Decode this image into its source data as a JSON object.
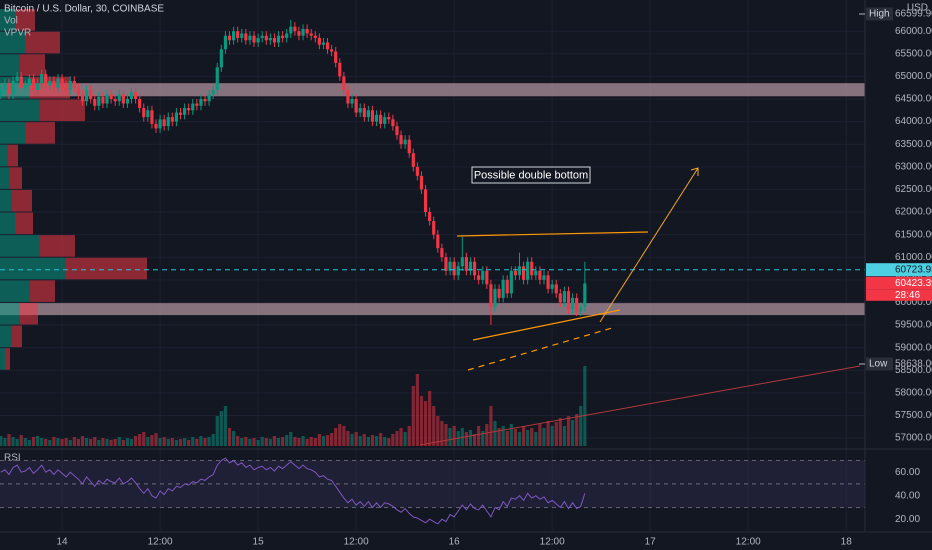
{
  "chart_data": {
    "type": "candlestick",
    "title": "Bitcoin / U.S. Dollar, 30, COINBASE",
    "indicators": [
      "Vol",
      "VPVR"
    ],
    "currency": "USD",
    "annotation": "Possible double bottom",
    "up_color": "#089981",
    "down_color": "#f23645",
    "grid": true,
    "x": [
      -7.5,
      -7,
      -6.5,
      -6,
      -5.5,
      -5,
      -4.5,
      -4,
      -3.5,
      -3,
      -2.5,
      -2,
      -1.5,
      -1,
      -0.5,
      0,
      0.5,
      1,
      1.5,
      2,
      2.5,
      3,
      3.5,
      4,
      4.5,
      5,
      5.5,
      6,
      6.5,
      7,
      7.5,
      8,
      8.5,
      9,
      9.5,
      10,
      10.5,
      11,
      11.5,
      12,
      12.5,
      13,
      13.5,
      14,
      14.5,
      15,
      15.5,
      16,
      16.5,
      17,
      17.5,
      18,
      18.5,
      19,
      19.5,
      20,
      20.5,
      21,
      21.5,
      22,
      22.5,
      23,
      23.5,
      24,
      24.5,
      25,
      25.5,
      26,
      26.5,
      27,
      27.5,
      28,
      28.5,
      29,
      29.5,
      30,
      30.5,
      31,
      31.5,
      32,
      32.5,
      33,
      33.5,
      34,
      34.5,
      35,
      35.5,
      36,
      36.5,
      37,
      37.5,
      38,
      38.5,
      39,
      39.5,
      40,
      40.5,
      41,
      41.5,
      42,
      42.5,
      43,
      43.5,
      44,
      44.5,
      45,
      45.5,
      46,
      46.5,
      47,
      47.5,
      48,
      48.5,
      49,
      49.5,
      50,
      50.5,
      51,
      51.5,
      52,
      52.5,
      53,
      53.5,
      54,
      54.5,
      55,
      55.5,
      56,
      56.5,
      57,
      57.5,
      58,
      58.5,
      59,
      59.5,
      60,
      60.5,
      61,
      61.5,
      62,
      62.5,
      63,
      63.5,
      64
    ],
    "open": [
      64600,
      64700,
      64850,
      64600,
      64900,
      65000,
      64750,
      64800,
      64950,
      64700,
      64850,
      65050,
      64800,
      64900,
      64750,
      64950,
      64800,
      64700,
      64900,
      64750,
      64600,
      64450,
      64700,
      64500,
      64350,
      64550,
      64400,
      64600,
      64500,
      64450,
      64600,
      64400,
      64500,
      64650,
      64500,
      64300,
      64100,
      64250,
      63950,
      63850,
      64050,
      63900,
      64100,
      64000,
      64200,
      64150,
      64300,
      64250,
      64400,
      64350,
      64500,
      64450,
      64600,
      64700,
      65200,
      65600,
      65900,
      65800,
      66000,
      65850,
      65950,
      65800,
      65900,
      65750,
      65850,
      65900,
      65800,
      65850,
      65750,
      65900,
      65850,
      65950,
      66100,
      66000,
      65900,
      66050,
      65950,
      65900,
      65850,
      65700,
      65750,
      65600,
      65550,
      65300,
      65000,
      64700,
      64400,
      64500,
      64200,
      64300,
      64100,
      64250,
      64000,
      64150,
      63950,
      64100,
      64050,
      63900,
      63700,
      63500,
      63600,
      63300,
      63000,
      62800,
      62500,
      62000,
      61800,
      61500,
      61200,
      61000,
      60700,
      60900,
      60600,
      60800,
      61000,
      60700,
      60900,
      60600,
      60500,
      60700,
      60400,
      59900,
      60300,
      60100,
      60500,
      60200,
      60700,
      60600,
      60800,
      60500,
      60900,
      60600,
      60700,
      60500,
      60600,
      60300,
      60400,
      60200,
      60000,
      60250,
      59850,
      60100,
      59800,
      59900
    ],
    "high": [
      64800,
      64950,
      64950,
      65000,
      65100,
      65100,
      64900,
      65050,
      65050,
      64950,
      65150,
      65150,
      65000,
      65000,
      65050,
      65050,
      64900,
      65000,
      65000,
      64850,
      64700,
      64800,
      64800,
      64600,
      64650,
      64650,
      64700,
      64700,
      64600,
      64700,
      64700,
      64600,
      64750,
      64750,
      64600,
      64400,
      64350,
      64350,
      64050,
      64150,
      64150,
      64200,
      64200,
      64300,
      64300,
      64400,
      64400,
      64500,
      64500,
      64600,
      64600,
      64700,
      64800,
      65300,
      65700,
      66000,
      66000,
      66100,
      66100,
      66050,
      66050,
      66000,
      66000,
      65950,
      66000,
      66000,
      65950,
      65950,
      66000,
      66000,
      66050,
      66250,
      66200,
      66100,
      66150,
      66150,
      66050,
      66000,
      65950,
      65850,
      65850,
      65700,
      65650,
      65400,
      65100,
      64800,
      64600,
      64600,
      64400,
      64400,
      64350,
      64350,
      64250,
      64250,
      64200,
      64200,
      64150,
      64000,
      63800,
      63700,
      63700,
      63400,
      63100,
      62900,
      62600,
      62100,
      61900,
      61600,
      61300,
      61100,
      61000,
      61000,
      60900,
      61450,
      61100,
      61000,
      61000,
      60700,
      60800,
      60800,
      60500,
      60400,
      60400,
      60600,
      60600,
      60800,
      60800,
      61100,
      60900,
      61000,
      61000,
      60800,
      60800,
      60700,
      60700,
      60500,
      60500,
      60300,
      60350,
      60350,
      60200,
      60200,
      60000,
      60900
    ],
    "low": [
      64500,
      64600,
      64500,
      64500,
      64800,
      64650,
      64650,
      64700,
      64600,
      64600,
      64750,
      64700,
      64700,
      64650,
      64650,
      64700,
      64600,
      64600,
      64650,
      64500,
      64350,
      64350,
      64400,
      64250,
      64250,
      64300,
      64300,
      64400,
      64350,
      64350,
      64300,
      64300,
      64400,
      64400,
      64200,
      64000,
      64000,
      63850,
      63750,
      63750,
      63800,
      63800,
      63900,
      63900,
      64050,
      64050,
      64150,
      64150,
      64250,
      64250,
      64350,
      64350,
      64500,
      64600,
      65100,
      65500,
      65700,
      65700,
      65750,
      65750,
      65700,
      65700,
      65650,
      65650,
      65750,
      65700,
      65700,
      65650,
      65650,
      65750,
      65750,
      65850,
      65900,
      65800,
      65800,
      65850,
      65800,
      65750,
      65600,
      65600,
      65500,
      65450,
      65200,
      64900,
      64600,
      64300,
      64300,
      64100,
      64100,
      64000,
      64000,
      63900,
      63900,
      63850,
      63850,
      63950,
      63800,
      63600,
      63400,
      63400,
      63200,
      62900,
      62700,
      62400,
      61900,
      61700,
      61400,
      61100,
      60900,
      60600,
      60600,
      60500,
      60500,
      60700,
      60600,
      60600,
      60500,
      60400,
      60400,
      60300,
      59500,
      59800,
      60000,
      60000,
      60100,
      60100,
      60500,
      60500,
      60400,
      60400,
      60500,
      60500,
      60400,
      60400,
      60200,
      60200,
      60100,
      59900,
      59900,
      59750,
      59750,
      59700,
      59700,
      59800
    ],
    "close": [
      64700,
      64850,
      64600,
      64900,
      65000,
      64750,
      64800,
      64950,
      64700,
      64850,
      65050,
      64800,
      64900,
      64750,
      64950,
      64800,
      64700,
      64900,
      64750,
      64600,
      64450,
      64700,
      64500,
      64350,
      64550,
      64400,
      64600,
      64500,
      64450,
      64600,
      64400,
      64500,
      64650,
      64500,
      64300,
      64100,
      64250,
      63950,
      63850,
      64050,
      63900,
      64100,
      64000,
      64200,
      64150,
      64300,
      64250,
      64400,
      64350,
      64500,
      64450,
      64600,
      64700,
      65200,
      65600,
      65900,
      65800,
      66000,
      65850,
      65950,
      65800,
      65900,
      65750,
      65850,
      65900,
      65800,
      65850,
      65750,
      65900,
      65850,
      65950,
      66100,
      66000,
      65900,
      66050,
      65950,
      65900,
      65850,
      65700,
      65750,
      65600,
      65550,
      65300,
      65000,
      64700,
      64400,
      64500,
      64200,
      64300,
      64100,
      64250,
      64000,
      64150,
      63950,
      64100,
      64050,
      63900,
      63700,
      63500,
      63600,
      63300,
      63000,
      62800,
      62500,
      62000,
      61800,
      61500,
      61200,
      61000,
      60700,
      60900,
      60600,
      60800,
      61000,
      60700,
      60900,
      60600,
      60500,
      60700,
      60400,
      59900,
      60300,
      60100,
      60500,
      60200,
      60700,
      60600,
      60800,
      60500,
      60900,
      60600,
      60700,
      60500,
      60600,
      60300,
      60400,
      60200,
      60000,
      60250,
      59850,
      60100,
      59800,
      59900,
      60420
    ],
    "volume": [
      10,
      8,
      12,
      9,
      7,
      11,
      8,
      6,
      9,
      10,
      8,
      7,
      6,
      9,
      8,
      7,
      8,
      6,
      9,
      7,
      10,
      8,
      7,
      9,
      6,
      8,
      7,
      6,
      7,
      9,
      6,
      8,
      7,
      10,
      12,
      14,
      9,
      11,
      13,
      8,
      9,
      7,
      8,
      6,
      7,
      8,
      6,
      9,
      7,
      10,
      8,
      9,
      12,
      30,
      35,
      40,
      18,
      15,
      10,
      8,
      9,
      7,
      8,
      6,
      9,
      8,
      7,
      10,
      8,
      9,
      11,
      14,
      9,
      8,
      10,
      7,
      9,
      8,
      12,
      10,
      11,
      13,
      18,
      22,
      20,
      15,
      12,
      14,
      10,
      12,
      9,
      11,
      10,
      13,
      9,
      8,
      12,
      15,
      18,
      14,
      20,
      60,
      72,
      50,
      45,
      55,
      40,
      30,
      25,
      22,
      18,
      20,
      15,
      18,
      14,
      16,
      12,
      20,
      15,
      22,
      40,
      25,
      18,
      20,
      15,
      22,
      17,
      14,
      20,
      16,
      18,
      14,
      22,
      18,
      25,
      20,
      24,
      28,
      20,
      30,
      26,
      32,
      40,
      80
    ],
    "xlim": [
      -7.6,
      98.3
    ],
    "xticks": [
      {
        "value": 0,
        "label": "14"
      },
      {
        "value": 12,
        "label": "12:00"
      },
      {
        "value": 24,
        "label": "15"
      },
      {
        "value": 36,
        "label": "12:00"
      },
      {
        "value": 48,
        "label": "16"
      },
      {
        "value": 60,
        "label": "12:00"
      },
      {
        "value": 72,
        "label": "17"
      },
      {
        "value": 84,
        "label": "12:00"
      },
      {
        "value": 96,
        "label": "18"
      }
    ],
    "ylim": [
      56780,
      66690
    ],
    "yticks": [
      {
        "value": 57000,
        "label": "57000.00"
      },
      {
        "value": 57500,
        "label": "57500.00"
      },
      {
        "value": 58000,
        "label": "58000.00"
      },
      {
        "value": 58500,
        "label": "58500.00"
      },
      {
        "value": 59000,
        "label": "59000.00"
      },
      {
        "value": 59500,
        "label": "59500.00"
      },
      {
        "value": 60000,
        "label": "60000.00"
      },
      {
        "value": 60500,
        "label": "60500.00"
      },
      {
        "value": 61000,
        "label": "61000.00"
      },
      {
        "value": 61500,
        "label": "61500.00"
      },
      {
        "value": 62000,
        "label": "62000.00"
      },
      {
        "value": 62500,
        "label": "62500.00"
      },
      {
        "value": 63000,
        "label": "63000.00"
      },
      {
        "value": 63500,
        "label": "63500.00"
      },
      {
        "value": 64000,
        "label": "64000.00"
      },
      {
        "value": 64500,
        "label": "64500.00"
      },
      {
        "value": 65000,
        "label": "65000.00"
      },
      {
        "value": 65500,
        "label": "65500.00"
      },
      {
        "value": 66000,
        "label": "66000.00"
      }
    ],
    "zones": [
      [
        59720,
        59985
      ],
      [
        64560,
        64850
      ]
    ],
    "alert_line": 60723.93,
    "last_price": 60423.39,
    "countdown": "28:46",
    "high_marker": {
      "name": "High",
      "value": 66599.9,
      "label": "66599.90"
    },
    "low_marker": {
      "name": "Low",
      "value": 58638,
      "label": "58638.00"
    },
    "vpvr": {
      "bins": [
        58500,
        59000,
        59500,
        60000,
        60500,
        61000,
        61500,
        62000,
        62500,
        63000,
        63500,
        64000,
        64500,
        65000,
        65500,
        66000,
        66500
      ],
      "up": [
        5,
        12,
        20,
        30,
        65,
        40,
        15,
        12,
        10,
        8,
        25,
        40,
        30,
        20,
        25,
        15
      ],
      "down": [
        5,
        10,
        18,
        25,
        82,
        35,
        18,
        20,
        12,
        10,
        30,
        45,
        40,
        25,
        35,
        20
      ]
    },
    "rsi": {
      "title": "RSI",
      "color": "#7e57c2",
      "values": [
        60,
        62,
        58,
        64,
        66,
        60,
        61,
        64,
        59,
        62,
        66,
        60,
        62,
        58,
        62,
        59,
        56,
        60,
        57,
        54,
        50,
        56,
        52,
        48,
        53,
        50,
        54,
        52,
        51,
        55,
        50,
        52,
        55,
        51,
        46,
        42,
        46,
        40,
        38,
        44,
        41,
        46,
        44,
        48,
        47,
        50,
        49,
        52,
        51,
        54,
        53,
        56,
        58,
        66,
        70,
        72,
        68,
        70,
        66,
        68,
        64,
        66,
        62,
        64,
        65,
        62,
        64,
        61,
        65,
        63,
        66,
        69,
        66,
        63,
        66,
        63,
        62,
        60,
        56,
        57,
        54,
        53,
        48,
        43,
        38,
        34,
        37,
        32,
        35,
        31,
        35,
        30,
        34,
        30,
        34,
        33,
        31,
        28,
        26,
        29,
        25,
        22,
        21,
        19,
        17,
        20,
        18,
        16,
        20,
        18,
        24,
        22,
        27,
        32,
        28,
        33,
        29,
        28,
        32,
        27,
        22,
        30,
        28,
        35,
        31,
        38,
        37,
        40,
        36,
        42,
        38,
        40,
        37,
        39,
        34,
        36,
        33,
        30,
        35,
        29,
        34,
        29,
        31,
        42
      ],
      "ylim": [
        10,
        78
      ],
      "yticks": [
        {
          "value": 20,
          "label": "20.00"
        },
        {
          "value": 40,
          "label": "40.00"
        },
        {
          "value": 60,
          "label": "60.00"
        }
      ],
      "levels": [
        30,
        50,
        70
      ]
    }
  }
}
